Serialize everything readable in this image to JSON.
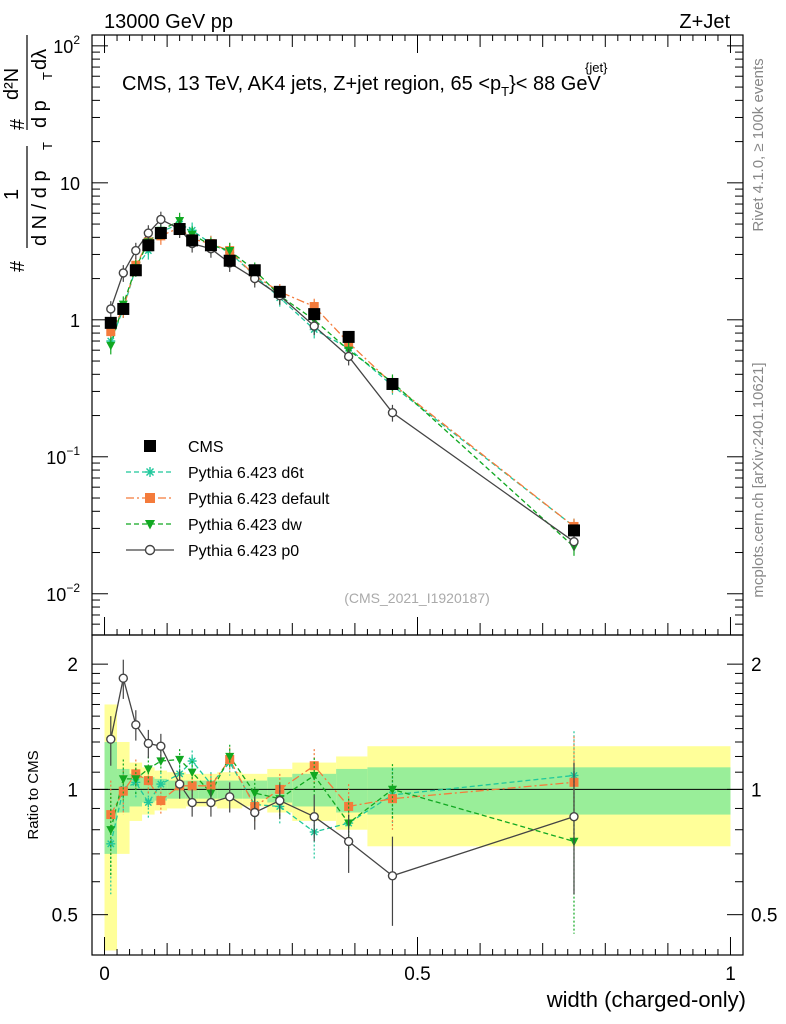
{
  "header": {
    "left_label": "13000 GeV pp",
    "right_label": "Z+Jet"
  },
  "side_labels": {
    "rivet": "Rivet 4.1.0, ≥ 100k events",
    "mcplots": "mcplots.cern.ch [arXiv:2401.10621]"
  },
  "main_plot": {
    "title": "CMS, 13 TeV, AK4 jets, Z+jet region, 65 <p",
    "title_sup": "{jet}",
    "title_sub": "T",
    "title_end": "}< 88 GeV",
    "ylabel": "1 / dN/dp_T  d²N / dp_T dλ",
    "ylabel_parts": {
      "hash": "#",
      "one": "1",
      "dN": "d N / d p",
      "T": "T",
      "d2N": "d²N",
      "dp": "d p",
      "dl": "dλ"
    },
    "watermark": "(CMS_2021_I1920187)",
    "yticks": [
      {
        "base": "10",
        "exp": "−2",
        "value": 0.01
      },
      {
        "base": "10",
        "exp": "−1",
        "value": 0.1
      },
      {
        "base": "1",
        "exp": "",
        "value": 1
      },
      {
        "base": "10",
        "exp": "",
        "value": 10
      },
      {
        "base": "10",
        "exp": "2",
        "value": 100
      }
    ]
  },
  "ratio_plot": {
    "ylabel": "Ratio to CMS",
    "yticks": [
      "0.5",
      "1",
      "2"
    ],
    "ytick_values": [
      0.5,
      1,
      2
    ]
  },
  "xaxis": {
    "label": "width (charged-only)",
    "ticks": [
      "0",
      "0.5",
      "1"
    ],
    "tick_values": [
      0,
      0.5,
      1
    ]
  },
  "legend": {
    "entries": [
      {
        "label": "CMS",
        "color": "#000000",
        "marker": "square"
      },
      {
        "label": "Pythia 6.423 d6t",
        "color": "#1fc89b",
        "marker": "star"
      },
      {
        "label": "Pythia 6.423 default",
        "color": "#f47b3b",
        "marker": "square"
      },
      {
        "label": "Pythia 6.423 dw",
        "color": "#11a821",
        "marker": "triangle"
      },
      {
        "label": "Pythia 6.423 p0",
        "color": "#444444",
        "marker": "circle"
      }
    ]
  },
  "chart_data": {
    "type": "scatter",
    "title": "CMS, 13 TeV, AK4 jets, Z+jet region, 65 < pT(jet) < 88 GeV",
    "xlabel": "width (charged-only)",
    "ylabel": "1/(dN/dpT) d2N/(dpT dlambda)",
    "xlim": [
      -0.02,
      1.02
    ],
    "ylim": [
      0.005,
      120
    ],
    "yscale": "log",
    "ratio_ylim": [
      0.4,
      2.35
    ],
    "x": [
      0.01,
      0.03,
      0.05,
      0.07,
      0.09,
      0.12,
      0.14,
      0.17,
      0.2,
      0.24,
      0.28,
      0.335,
      0.39,
      0.46,
      0.75
    ],
    "band_edges": [
      0,
      0.02,
      0.04,
      0.06,
      0.08,
      0.1,
      0.13,
      0.15,
      0.18,
      0.22,
      0.26,
      0.3,
      0.37,
      0.42,
      0.5,
      1.0
    ],
    "band_stat_half": [
      0.3,
      0.12,
      0.09,
      0.07,
      0.06,
      0.05,
      0.05,
      0.05,
      0.05,
      0.05,
      0.07,
      0.09,
      0.12,
      0.13,
      0.13
    ],
    "band_total_half": [
      0.6,
      0.3,
      0.16,
      0.13,
      0.11,
      0.1,
      0.09,
      0.09,
      0.1,
      0.09,
      0.12,
      0.16,
      0.2,
      0.27,
      0.27
    ],
    "series": [
      {
        "name": "CMS",
        "color": "#000000",
        "values": [
          0.95,
          1.2,
          2.3,
          3.5,
          4.3,
          4.6,
          3.8,
          3.5,
          2.7,
          2.3,
          1.6,
          1.1,
          0.75,
          0.34,
          0.029
        ],
        "ratio": [
          1,
          1,
          1,
          1,
          1,
          1,
          1,
          1,
          1,
          1,
          1,
          1,
          1,
          1,
          1
        ]
      },
      {
        "name": "Pythia 6.423 d6t",
        "color": "#1fc89b",
        "values": [
          0.7,
          1.2,
          2.4,
          3.2,
          4.4,
          5.0,
          4.5,
          3.6,
          3.1,
          2.1,
          1.45,
          0.85,
          0.62,
          0.33,
          0.031
        ],
        "ratio": [
          0.74,
          1.0,
          1.04,
          0.93,
          1.03,
          1.09,
          1.17,
          1.03,
          1.16,
          0.92,
          0.91,
          0.79,
          0.83,
          0.97,
          1.08
        ],
        "ratio_err": [
          0.18,
          0.12,
          0.09,
          0.08,
          0.07,
          0.07,
          0.07,
          0.07,
          0.08,
          0.08,
          0.09,
          0.11,
          0.12,
          0.15,
          0.3
        ]
      },
      {
        "name": "Pythia 6.423 default",
        "color": "#f47b3b",
        "values": [
          0.82,
          1.2,
          2.5,
          3.7,
          4.1,
          4.7,
          3.9,
          3.6,
          3.2,
          2.1,
          1.6,
          1.25,
          0.68,
          0.34,
          0.031
        ],
        "ratio": [
          0.87,
          0.99,
          1.09,
          1.05,
          0.94,
          1.02,
          1.02,
          1.02,
          1.18,
          0.91,
          1.0,
          1.14,
          0.91,
          0.95,
          1.04
        ],
        "ratio_err": [
          0.18,
          0.12,
          0.09,
          0.08,
          0.07,
          0.07,
          0.07,
          0.07,
          0.08,
          0.08,
          0.09,
          0.11,
          0.12,
          0.15,
          0.3
        ]
      },
      {
        "name": "Pythia 6.423 dw",
        "color": "#11a821",
        "values": [
          0.65,
          1.3,
          2.4,
          3.7,
          4.5,
          5.3,
          4.2,
          3.5,
          3.2,
          2.3,
          1.5,
          1.0,
          0.6,
          0.35,
          0.022
        ],
        "ratio": [
          0.8,
          1.06,
          1.06,
          1.12,
          1.17,
          1.18,
          1.1,
          0.98,
          1.2,
          0.98,
          0.95,
          1.08,
          0.83,
          1.0,
          0.75
        ],
        "ratio_err": [
          0.18,
          0.12,
          0.09,
          0.08,
          0.07,
          0.07,
          0.07,
          0.07,
          0.08,
          0.08,
          0.09,
          0.11,
          0.12,
          0.15,
          0.3
        ]
      },
      {
        "name": "Pythia 6.423 p0",
        "color": "#444444",
        "values": [
          1.2,
          2.2,
          3.2,
          4.3,
          5.4,
          4.6,
          3.6,
          3.3,
          2.6,
          2.0,
          1.5,
          0.9,
          0.54,
          0.21,
          0.024
        ],
        "ratio": [
          1.32,
          1.85,
          1.43,
          1.29,
          1.27,
          1.03,
          0.93,
          0.93,
          0.96,
          0.88,
          0.94,
          0.86,
          0.75,
          0.62,
          0.86
        ],
        "ratio_err": [
          0.18,
          0.2,
          0.12,
          0.1,
          0.09,
          0.08,
          0.07,
          0.07,
          0.08,
          0.08,
          0.09,
          0.11,
          0.12,
          0.15,
          0.3
        ]
      }
    ]
  }
}
